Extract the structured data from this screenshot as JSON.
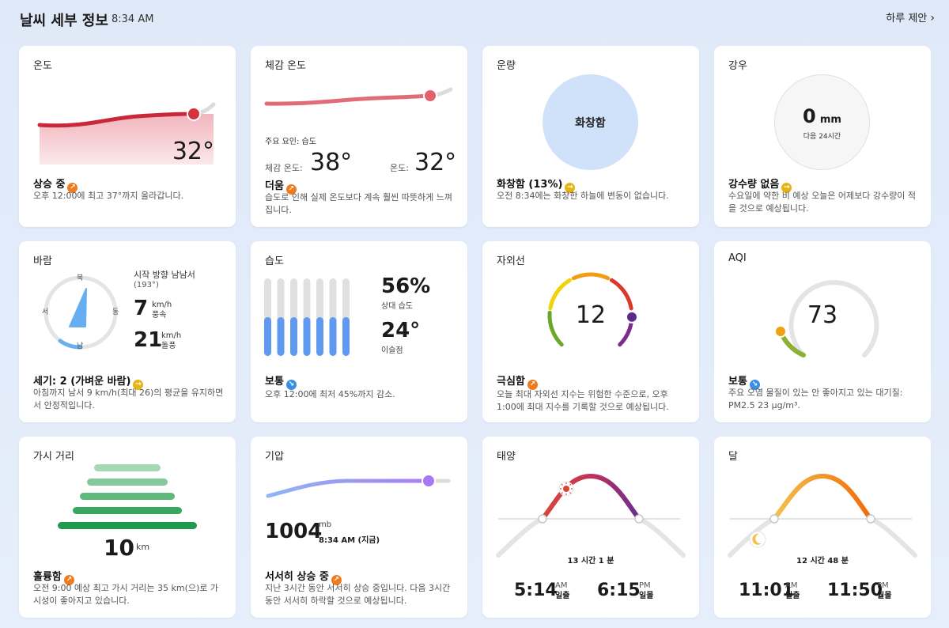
{
  "header": {
    "title": "날씨 세부 정보",
    "time": "8:34 AM",
    "forecast_link": "하루 제안",
    "chevron_icon": "chevron-right-icon"
  },
  "temperature": {
    "title": "온도",
    "value": "32°",
    "status": "상승 중",
    "trend_icon": "trend-up-icon",
    "description": "오후 12:00에 최고 37°까지 올라갑니다."
  },
  "feels_like": {
    "title": "체감 온도",
    "factor": "주요 요인: 습도",
    "feels_label": "체감 온도:",
    "feels_value": "38°",
    "temp_label": "온도:",
    "temp_value": "32°",
    "status": "더움",
    "trend_icon": "trend-up-icon",
    "description": "습도로 인해 실제 온도보다 계속 훨씬 따뜻하게 느껴집니다."
  },
  "cloud": {
    "title": "운량",
    "circle_label": "화창함",
    "status": "화창함 (13%)",
    "trend_icon": "trend-neutral-icon",
    "description": "오전 8:34에는 화창한 하늘에 변동이 없습니다."
  },
  "rain": {
    "title": "강우",
    "value": "0",
    "unit": "mm",
    "sublabel": "다음 24시간",
    "status": "강수량 없음",
    "trend_icon": "trend-neutral-icon",
    "description": "수요일에 약한 비 예상 오늘은 어제보다 강수량이 적을 것으로 예상됩니다."
  },
  "wind": {
    "title": "바람",
    "compass": {
      "n": "북",
      "e": "동",
      "s": "남",
      "w": "서"
    },
    "direction": "시작 방향 남남서",
    "degrees": "(193°)",
    "speed": "7",
    "speed_unit": "km/h",
    "speed_label": "풍속",
    "gust": "21",
    "gust_unit": "km/h",
    "gust_label": "돌풍",
    "status": "세기: 2 (가벼운 바람)",
    "trend_icon": "trend-neutral-icon",
    "description": "아침까지 남서 9 km/h(최대 26)의 평균을 유지하면서 안정적입니다."
  },
  "humidity": {
    "title": "습도",
    "value": "56%",
    "value_label": "상대 습도",
    "dew": "24°",
    "dew_label": "이슬점",
    "status": "보통",
    "trend_icon": "trend-down-icon",
    "description": "오후 12:00에 최저 45%까지 감소.",
    "bar_level": 0.45
  },
  "uv": {
    "title": "자외선",
    "value": "12",
    "status": "극심함",
    "trend_icon": "trend-up-icon",
    "description": "오늘 최대 자외선 지수는 위험한 수준으로, 오후 1:00에 최대 지수를 기록할 것으로 예상됩니다.",
    "colors": [
      "#6aa82a",
      "#f2d20a",
      "#f39c12",
      "#d93a2c",
      "#7b2d8e"
    ]
  },
  "aqi": {
    "title": "AQI",
    "value": "73",
    "status": "보통",
    "trend_icon": "trend-down-icon",
    "description": "주요 오염 물질이 있는 안 좋아지고 있는 대기질: PM2.5 23 μg/m³."
  },
  "visibility": {
    "title": "가시 거리",
    "value": "10",
    "unit": "km",
    "status": "훌륭함",
    "trend_icon": "trend-up-icon",
    "description": "오전 9:00 예상 최고 가시 거리는 35 km(으)로 가시성이 좋아지고 있습니다."
  },
  "pressure": {
    "title": "기압",
    "value": "1004",
    "unit": "mb",
    "time": "8:34 AM (지금)",
    "status": "서서히 상승 중",
    "trend_icon": "trend-up-icon",
    "description": "지난 3시간 동안 서서히 상승 중입니다. 다음 3시간 동안 서서히 하락할 것으로 예상됩니다."
  },
  "sun": {
    "title": "태양",
    "duration": "13 시간 1 분",
    "rise_time": "5:14",
    "rise_ampm": "AM",
    "rise_label": "일출",
    "set_time": "6:15",
    "set_ampm": "PM",
    "set_label": "일몰",
    "sun_icon": "sun-icon"
  },
  "moon": {
    "title": "달",
    "duration": "12 시간 48 분",
    "rise_time": "11:01",
    "rise_ampm": "AM",
    "rise_label": "월출",
    "set_time": "11:50",
    "set_ampm": "PM",
    "set_label": "월몰",
    "moon_icon": "moon-icon"
  }
}
